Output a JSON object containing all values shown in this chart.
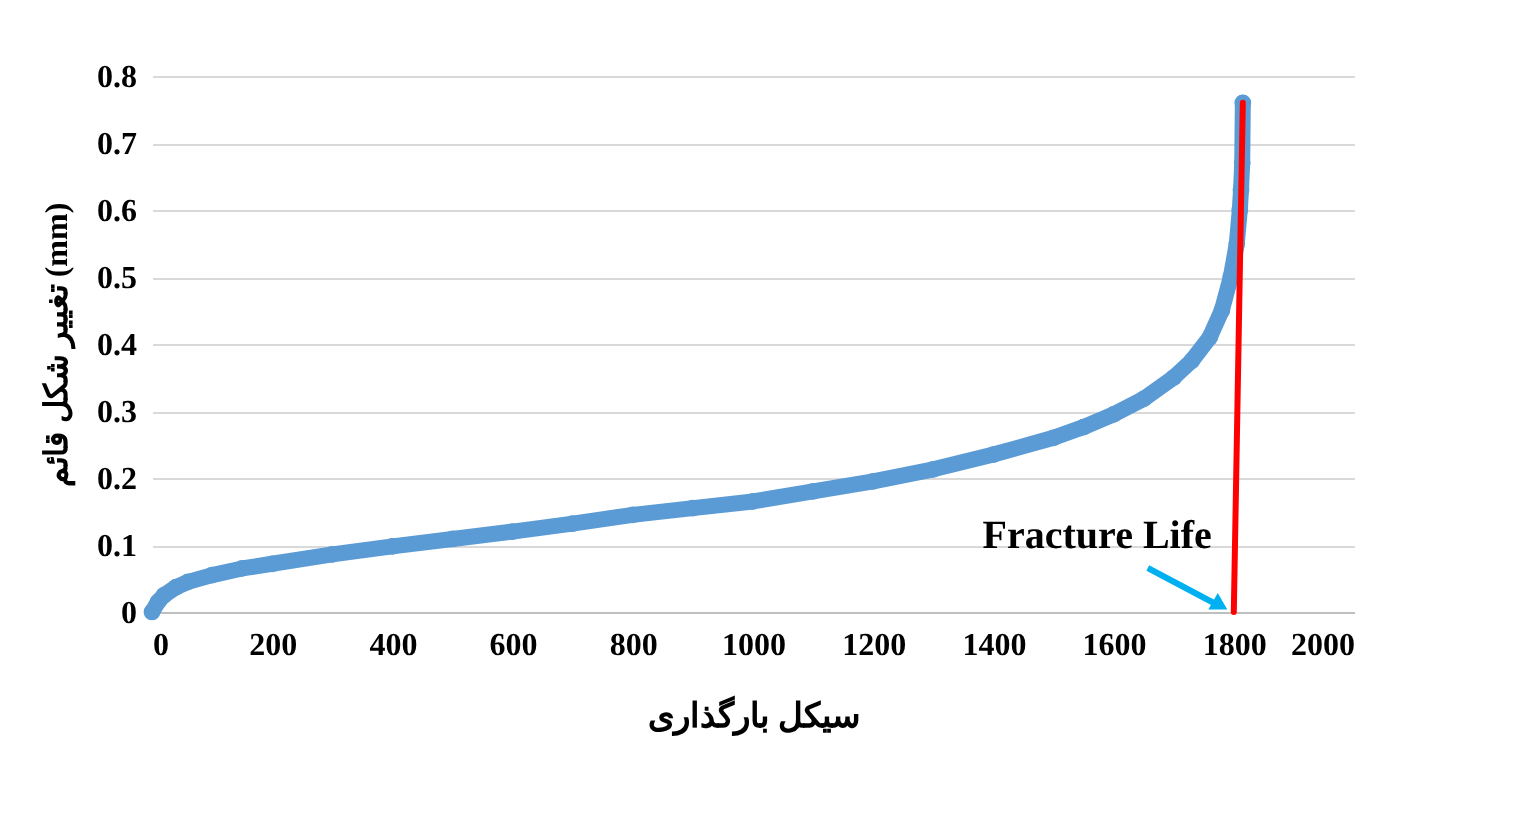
{
  "chart_data": {
    "type": "line",
    "xlabel": "سیکل بارگذاری",
    "ylabel": "تغییر شکل قائم (mm)",
    "xlim": [
      0,
      2000
    ],
    "xticks": [
      0,
      200,
      400,
      600,
      800,
      1000,
      1200,
      1400,
      1600,
      1800,
      2000
    ],
    "ylim": [
      0,
      0.8
    ],
    "yticks": [
      0,
      0.1,
      0.2,
      0.3,
      0.4,
      0.5,
      0.6,
      0.7,
      0.8
    ],
    "grid": "y",
    "series": [
      {
        "color": "#5b9bd5",
        "marker": "circle",
        "x": [
          0,
          10,
          20,
          40,
          60,
          100,
          150,
          200,
          300,
          400,
          500,
          600,
          700,
          800,
          900,
          1000,
          1100,
          1200,
          1300,
          1400,
          1500,
          1550,
          1600,
          1650,
          1700,
          1730,
          1760,
          1780,
          1795,
          1805,
          1810,
          1812,
          1814,
          1815
        ],
        "values": [
          0,
          0.015,
          0.025,
          0.037,
          0.045,
          0.055,
          0.065,
          0.072,
          0.086,
          0.098,
          0.109,
          0.12,
          0.132,
          0.145,
          0.155,
          0.165,
          0.18,
          0.195,
          0.213,
          0.235,
          0.26,
          0.276,
          0.295,
          0.318,
          0.35,
          0.375,
          0.41,
          0.45,
          0.5,
          0.55,
          0.6,
          0.63,
          0.67,
          0.76
        ]
      },
      {
        "type": "line",
        "color": "#ff0000",
        "marker": "none",
        "x": [
          1800,
          1815
        ],
        "values": [
          0,
          0.76
        ]
      }
    ],
    "annotations": [
      {
        "text": "Fracture Life",
        "x": 1790,
        "y": 0
      }
    ]
  }
}
